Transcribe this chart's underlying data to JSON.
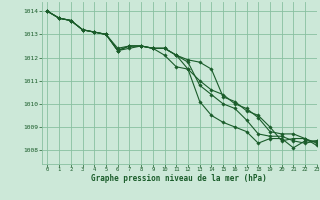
{
  "bg_color": "#cce8d8",
  "grid_color": "#88c0a0",
  "line_color": "#1a5c2a",
  "marker_color": "#1a5c2a",
  "xlabel": "Graphe pression niveau de la mer (hPa)",
  "xlabel_color": "#1a5c2a",
  "ylabel_color": "#1a5c2a",
  "xlim": [
    -0.5,
    23
  ],
  "ylim": [
    1007.4,
    1014.4
  ],
  "yticks": [
    1008,
    1009,
    1010,
    1011,
    1012,
    1013,
    1014
  ],
  "xticks": [
    0,
    1,
    2,
    3,
    4,
    5,
    6,
    7,
    8,
    9,
    10,
    11,
    12,
    13,
    14,
    15,
    16,
    17,
    18,
    19,
    20,
    21,
    22,
    23
  ],
  "series": [
    [
      1014.0,
      1013.7,
      1013.6,
      1013.2,
      1013.1,
      1013.0,
      1012.4,
      1012.5,
      1012.5,
      1012.4,
      1012.4,
      1012.1,
      1011.9,
      1011.8,
      1011.5,
      1010.3,
      1010.1,
      1009.7,
      1009.5,
      1009.0,
      1008.4,
      1008.5,
      1008.5,
      1008.2
    ],
    [
      1014.0,
      1013.7,
      1013.6,
      1013.2,
      1013.1,
      1013.0,
      1012.3,
      1012.4,
      1012.5,
      1012.4,
      1012.1,
      1011.6,
      1011.5,
      1011.0,
      1010.6,
      1010.4,
      1010.0,
      1009.8,
      1009.4,
      1008.8,
      1008.7,
      1008.7,
      1008.5,
      1008.3
    ],
    [
      1014.0,
      1013.7,
      1013.6,
      1013.2,
      1013.1,
      1013.0,
      1012.3,
      1012.5,
      1012.5,
      1012.4,
      1012.4,
      1012.1,
      1011.8,
      1010.8,
      1010.4,
      1010.0,
      1009.8,
      1009.3,
      1008.7,
      1008.6,
      1008.6,
      1008.4,
      1008.3,
      1008.4
    ],
    [
      1014.0,
      1013.7,
      1013.6,
      1013.2,
      1013.1,
      1013.0,
      1012.3,
      1012.5,
      1012.5,
      1012.4,
      1012.4,
      1012.1,
      1011.5,
      1010.1,
      1009.5,
      1009.2,
      1009.0,
      1008.8,
      1008.3,
      1008.5,
      1008.5,
      1008.1,
      1008.4,
      1008.4
    ]
  ]
}
